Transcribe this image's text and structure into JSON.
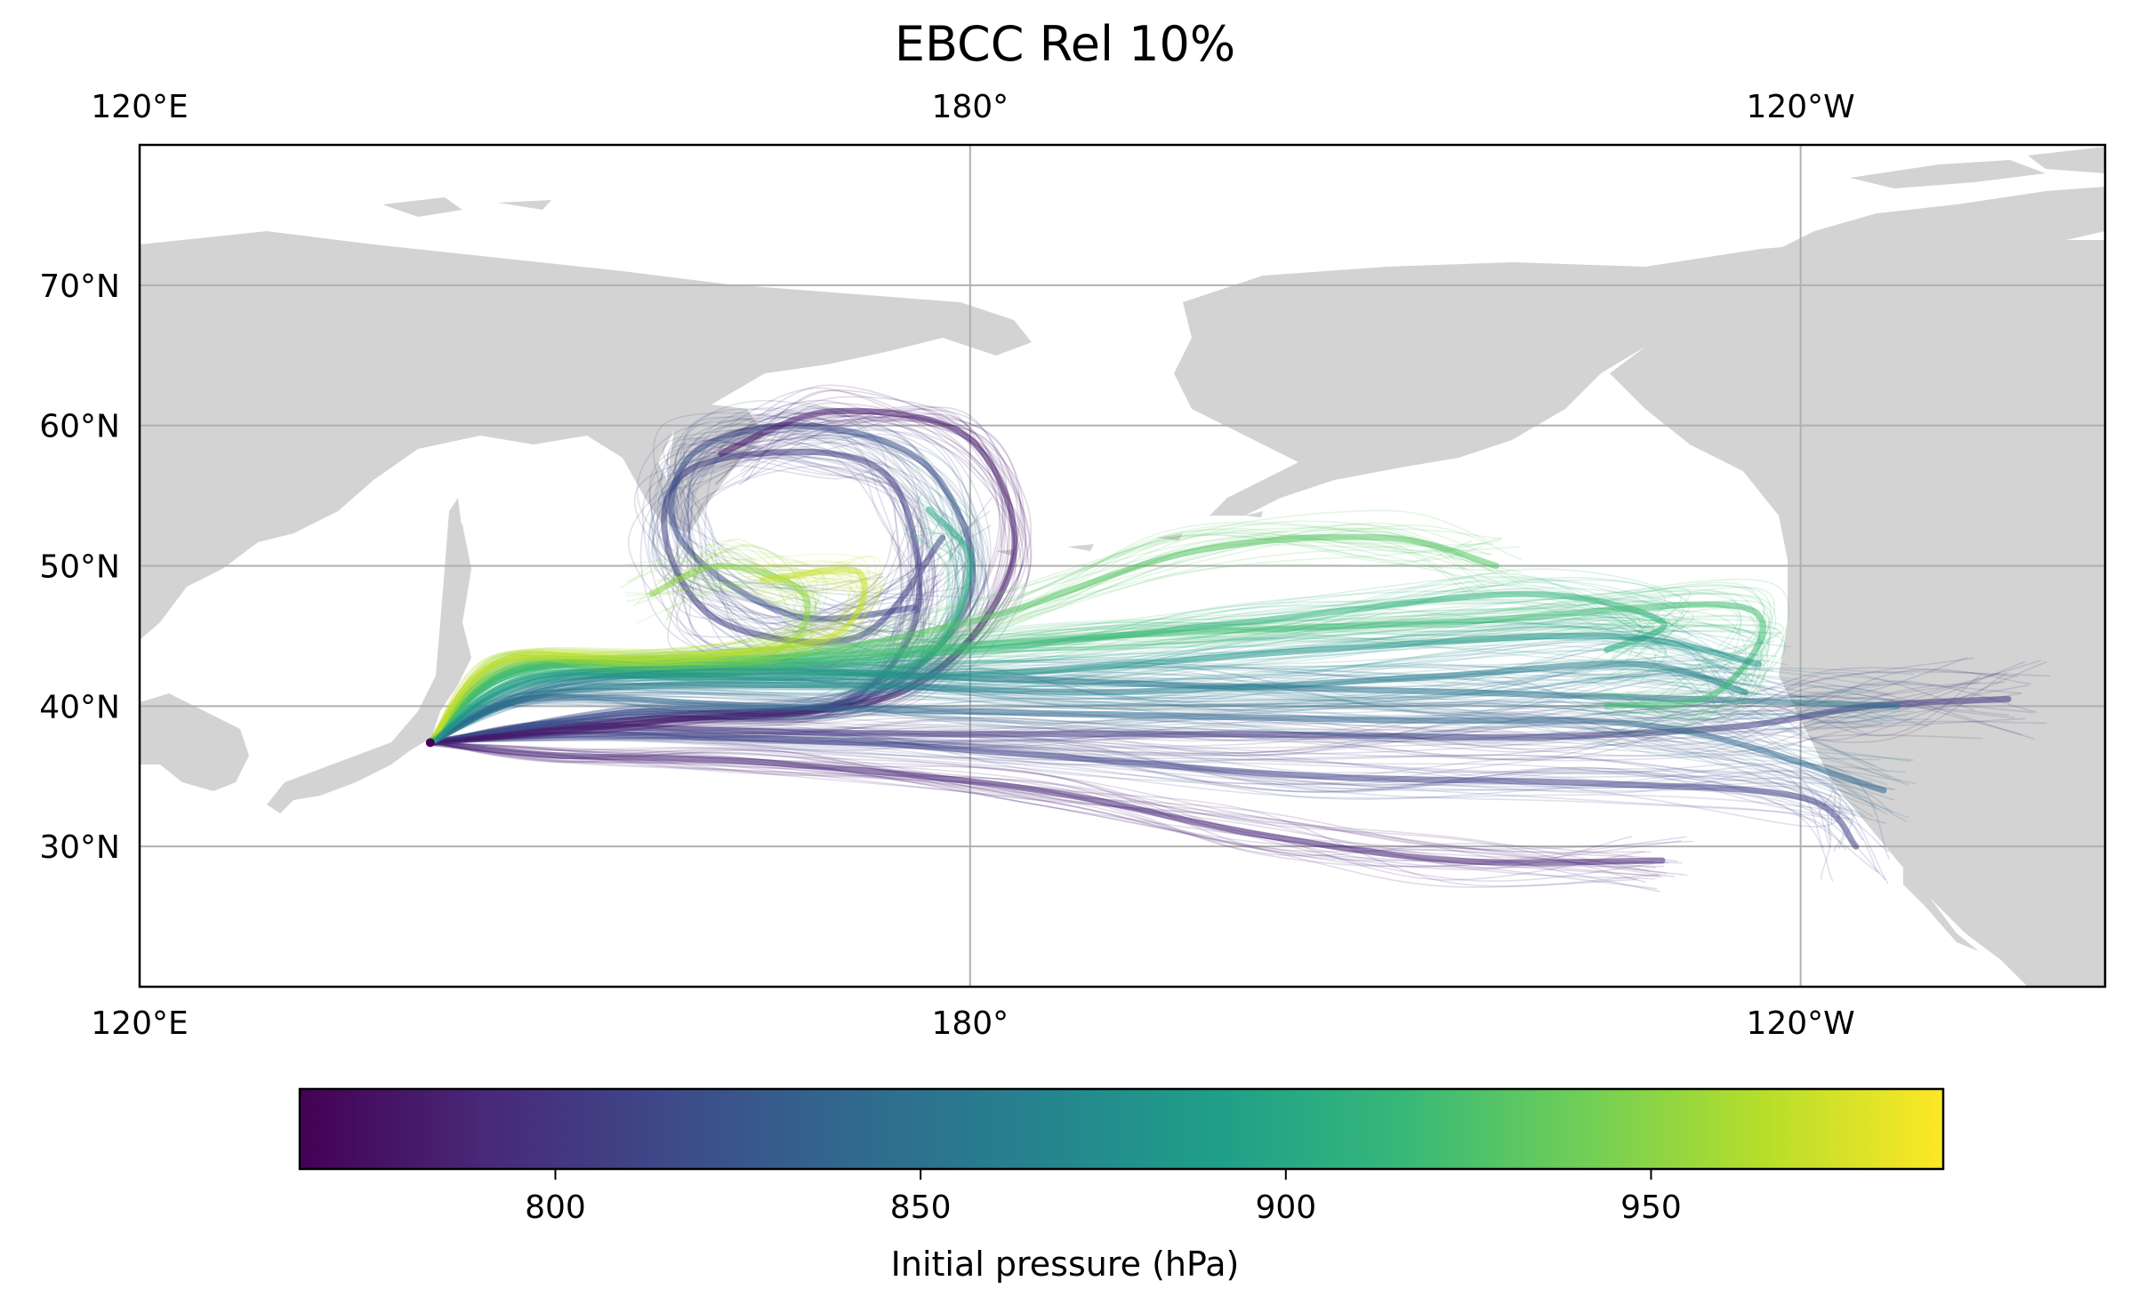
{
  "title": "EBCC Rel 10%",
  "colorbar": {
    "label": "Initial pressure (hPa)",
    "ticks": [
      800,
      850,
      900,
      950
    ],
    "range": [
      765,
      990
    ],
    "colormap": [
      "#440154",
      "#482878",
      "#3e4989",
      "#31688e",
      "#26828e",
      "#1f9e89",
      "#35b779",
      "#6ece58",
      "#b5de2b",
      "#fde725"
    ]
  },
  "map": {
    "lon_range": [
      120,
      262
    ],
    "lat_range": [
      20,
      80
    ],
    "lon_ticks": [
      {
        "value": 120,
        "label": "120°E"
      },
      {
        "value": 180,
        "label": "180°"
      },
      {
        "value": 240,
        "label": "120°W"
      }
    ],
    "lat_ticks": [
      {
        "value": 30,
        "label": "30°N"
      },
      {
        "value": 40,
        "label": "40°N"
      },
      {
        "value": 50,
        "label": "50°N"
      },
      {
        "value": 60,
        "label": "60°N"
      },
      {
        "value": 70,
        "label": "70°N"
      }
    ],
    "land_color": "#d3d3d3",
    "grid_color": "#b0b0b0",
    "gridlines": true
  },
  "trajectories": {
    "release_point": {
      "lon": 141.0,
      "lat": 37.4
    },
    "paths": [
      {
        "pressure": 800,
        "points": [
          [
            141,
            37.4
          ],
          [
            150,
            38.5
          ],
          [
            165,
            38.2
          ],
          [
            180,
            38
          ],
          [
            200,
            38
          ],
          [
            220,
            37.8
          ],
          [
            235,
            38.5
          ],
          [
            245,
            40
          ],
          [
            255,
            40.5
          ]
        ]
      },
      {
        "pressure": 810,
        "points": [
          [
            141,
            37.4
          ],
          [
            152,
            38.0
          ],
          [
            170,
            37.5
          ],
          [
            185,
            36.5
          ],
          [
            205,
            35.0
          ],
          [
            225,
            34.5
          ],
          [
            240,
            33.5
          ],
          [
            244,
            30
          ]
        ]
      },
      {
        "pressure": 790,
        "points": [
          [
            141,
            37.4
          ],
          [
            150,
            36.5
          ],
          [
            165,
            36.0
          ],
          [
            185,
            34.0
          ],
          [
            200,
            31.0
          ],
          [
            215,
            29.0
          ],
          [
            230,
            29.0
          ]
        ]
      },
      {
        "pressure": 805,
        "points": [
          [
            141,
            37.4
          ],
          [
            155,
            39.0
          ],
          [
            170,
            40.0
          ],
          [
            176,
            46.0
          ],
          [
            175,
            55.0
          ],
          [
            170,
            58.0
          ],
          [
            160,
            57.0
          ],
          [
            158,
            52.0
          ],
          [
            162,
            46.0
          ],
          [
            172,
            45.0
          ],
          [
            178,
            52.0
          ]
        ]
      },
      {
        "pressure": 820,
        "points": [
          [
            141,
            37.4
          ],
          [
            155,
            39.5
          ],
          [
            172,
            40.5
          ],
          [
            180,
            48.0
          ],
          [
            177,
            57.0
          ],
          [
            168,
            60.0
          ],
          [
            160,
            58.0
          ],
          [
            159,
            52.0
          ],
          [
            167,
            46.5
          ],
          [
            176,
            47.0
          ]
        ]
      },
      {
        "pressure": 780,
        "points": [
          [
            141,
            37.4
          ],
          [
            158,
            39.0
          ],
          [
            175,
            41.0
          ],
          [
            183,
            50.0
          ],
          [
            180,
            59.0
          ],
          [
            170,
            61.0
          ],
          [
            162,
            58.0
          ]
        ]
      },
      {
        "pressure": 850,
        "points": [
          [
            141,
            37.4
          ],
          [
            150,
            41.5
          ],
          [
            165,
            42.5
          ],
          [
            180,
            42.0
          ],
          [
            195,
            41.5
          ],
          [
            215,
            41.0
          ],
          [
            232,
            40.5
          ],
          [
            247,
            40.0
          ]
        ]
      },
      {
        "pressure": 860,
        "points": [
          [
            141,
            37.4
          ],
          [
            150,
            41.0
          ],
          [
            170,
            41.5
          ],
          [
            190,
            41.0
          ],
          [
            212,
            42.0
          ],
          [
            228,
            43.0
          ],
          [
            236,
            41.0
          ]
        ]
      },
      {
        "pressure": 840,
        "points": [
          [
            141,
            37.4
          ],
          [
            148,
            40.5
          ],
          [
            165,
            40.0
          ],
          [
            185,
            39.5
          ],
          [
            210,
            39.0
          ],
          [
            230,
            38.5
          ],
          [
            246,
            34.0
          ]
        ]
      },
      {
        "pressure": 900,
        "points": [
          [
            141,
            37.4
          ],
          [
            148,
            42.0
          ],
          [
            163,
            42.5
          ],
          [
            176,
            43.0
          ],
          [
            180,
            50.0
          ],
          [
            177,
            54.0
          ]
        ]
      },
      {
        "pressure": 910,
        "points": [
          [
            141,
            37.4
          ],
          [
            147,
            42.5
          ],
          [
            160,
            42.8
          ],
          [
            180,
            44.0
          ],
          [
            200,
            46.0
          ],
          [
            220,
            48.0
          ],
          [
            230,
            46.0
          ],
          [
            226,
            44.0
          ]
        ]
      },
      {
        "pressure": 930,
        "points": [
          [
            141,
            37.4
          ],
          [
            147,
            42.8
          ],
          [
            162,
            43.0
          ],
          [
            180,
            46.0
          ],
          [
            196,
            51.0
          ],
          [
            210,
            52.0
          ],
          [
            218,
            50.0
          ]
        ]
      },
      {
        "pressure": 920,
        "points": [
          [
            141,
            37.4
          ],
          [
            148,
            42.6
          ],
          [
            168,
            43.5
          ],
          [
            190,
            45.0
          ],
          [
            215,
            46.0
          ],
          [
            236,
            47.0
          ],
          [
            234,
            41.0
          ],
          [
            226,
            40.0
          ]
        ]
      },
      {
        "pressure": 950,
        "points": [
          [
            141,
            37.4
          ],
          [
            146,
            43.0
          ],
          [
            155,
            43.2
          ],
          [
            166,
            44.0
          ],
          [
            168,
            48.0
          ],
          [
            162,
            50.0
          ],
          [
            157,
            48.0
          ]
        ]
      },
      {
        "pressure": 970,
        "points": [
          [
            141,
            37.4
          ],
          [
            146,
            43.2
          ],
          [
            158,
            43.5
          ],
          [
            170,
            45.0
          ],
          [
            172,
            49.5
          ],
          [
            165,
            49.0
          ]
        ]
      },
      {
        "pressure": 880,
        "points": [
          [
            141,
            37.4
          ],
          [
            149,
            41.8
          ],
          [
            168,
            42.0
          ],
          [
            185,
            42.5
          ],
          [
            205,
            44.0
          ],
          [
            226,
            45.0
          ],
          [
            237,
            43.0
          ]
        ]
      }
    ]
  }
}
